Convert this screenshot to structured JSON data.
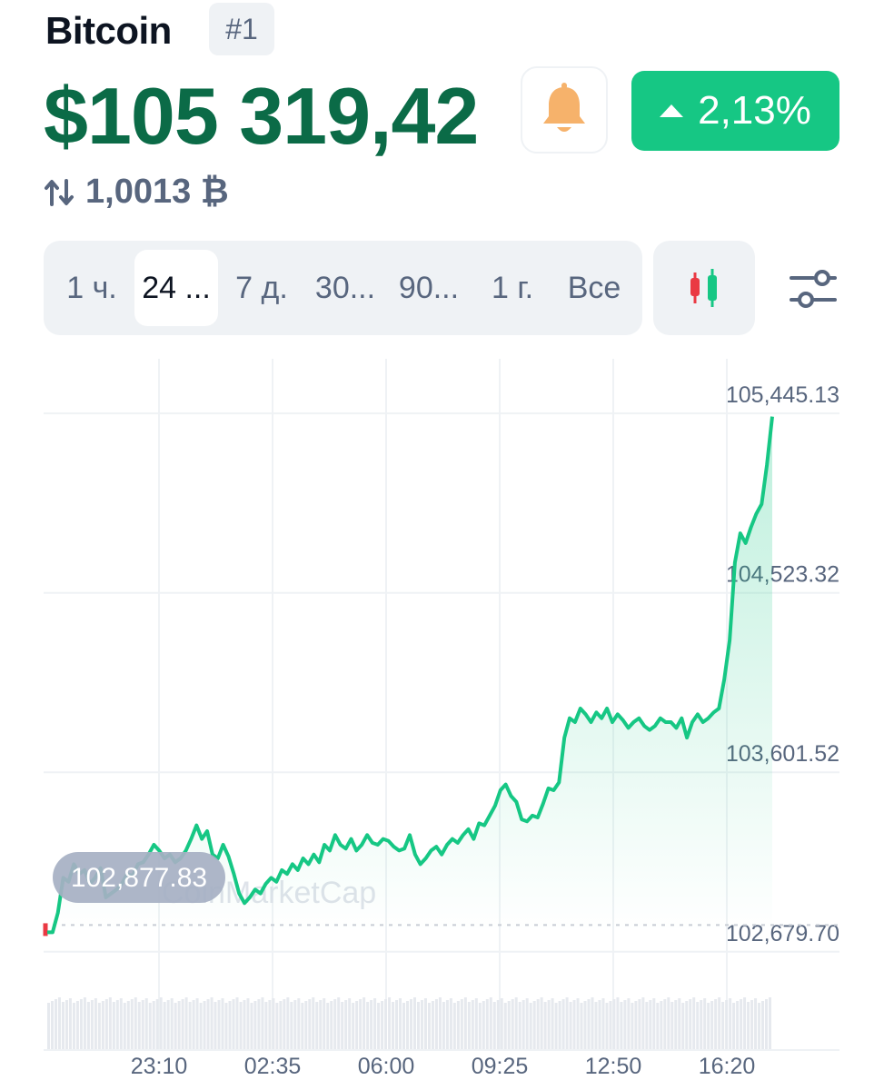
{
  "header": {
    "coin_name": "Bitcoin",
    "rank": "#1",
    "price": "$105 319,42",
    "change": "2,13%",
    "btc_amount": "1,0013 ₿"
  },
  "timeframes": [
    "1 ч.",
    "24 ...",
    "7 д.",
    "30...",
    "90...",
    "1 г.",
    "Все"
  ],
  "active_timeframe": "24 ...",
  "colors": {
    "price_green": "#0b6b47",
    "up": "#16c784",
    "down": "#ea3943"
  },
  "icons": {
    "bell": "bell-icon",
    "swap": "swap-arrows-icon",
    "candles": "candlestick-icon",
    "settings": "sliders-icon"
  },
  "chart_data": {
    "type": "line",
    "title": "",
    "watermark": "CoinMarketCap",
    "x_ticks": [
      "23:10",
      "02:35",
      "06:00",
      "09:25",
      "12:50",
      "16:20"
    ],
    "y_ticks": [
      "105,445.13",
      "104,523.32",
      "103,601.52",
      "102,679.70"
    ],
    "ylim": [
      102450,
      105670
    ],
    "open_price": 102700,
    "first_label": "102,877.83",
    "series": [
      {
        "values": [
          102700,
          102700,
          102800,
          102980,
          102960,
          103050,
          103000,
          103020,
          102950,
          102980,
          103030,
          102880,
          102900,
          102920,
          102950,
          103000,
          102990,
          103050,
          103060,
          103100,
          103150,
          103120,
          103080,
          103100,
          103060,
          103080,
          103120,
          103180,
          103250,
          103180,
          103220,
          103100,
          103080,
          103150,
          103090,
          103000,
          102900,
          102850,
          102880,
          102920,
          102900,
          102950,
          102980,
          102960,
          103020,
          103000,
          103050,
          103020,
          103080,
          103050,
          103100,
          103060,
          103150,
          103120,
          103200,
          103150,
          103130,
          103180,
          103120,
          103150,
          103200,
          103160,
          103150,
          103180,
          103170,
          103140,
          103120,
          103130,
          103200,
          103100,
          103050,
          103080,
          103120,
          103140,
          103100,
          103150,
          103180,
          103160,
          103200,
          103230,
          103180,
          103260,
          103250,
          103300,
          103350,
          103430,
          103460,
          103400,
          103370,
          103280,
          103270,
          103300,
          103290,
          103360,
          103440,
          103430,
          103470,
          103700,
          103800,
          103780,
          103850,
          103820,
          103780,
          103830,
          103800,
          103850,
          103780,
          103820,
          103790,
          103750,
          103780,
          103800,
          103760,
          103740,
          103760,
          103800,
          103780,
          103780,
          103750,
          103800,
          103700,
          103780,
          103820,
          103780,
          103800,
          103830,
          103850,
          104000,
          104200,
          104600,
          104750,
          104700,
          104780,
          104850,
          104900,
          105100,
          105350
        ]
      }
    ]
  }
}
